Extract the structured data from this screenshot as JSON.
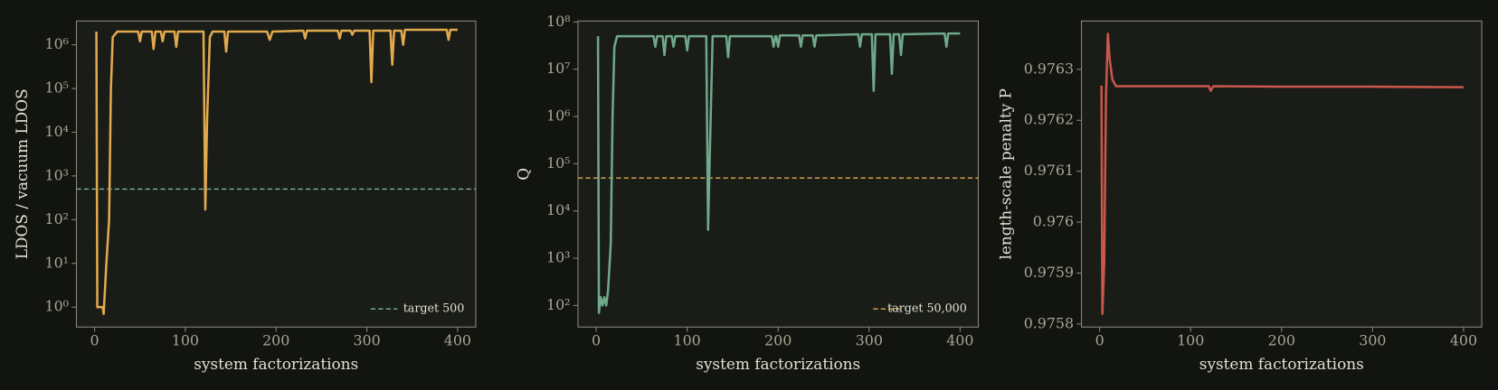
{
  "chart_data": [
    {
      "type": "line",
      "log_y": true,
      "xlabel": "system factorizations",
      "ylabel": "LDOS / vacuum LDOS",
      "xlim": [
        -20,
        420
      ],
      "xticks": [
        0,
        100,
        200,
        300,
        400
      ],
      "ylim": [
        0.35,
        3500000
      ],
      "yticks": [
        {
          "value": 1,
          "label": "10⁰"
        },
        {
          "value": 10,
          "label": "10¹"
        },
        {
          "value": 100,
          "label": "10²"
        },
        {
          "value": 1000,
          "label": "10³"
        },
        {
          "value": 10000,
          "label": "10⁴"
        },
        {
          "value": 100000,
          "label": "10⁵"
        },
        {
          "value": 1000000,
          "label": "10⁶"
        }
      ],
      "legend": "lower right",
      "hlines": [
        {
          "name": "target 500",
          "value": 500,
          "color": "#7fb59a"
        }
      ],
      "series": [
        {
          "color": "#e2aa4f",
          "x": [
            2,
            3,
            6,
            9,
            10,
            13,
            16,
            18,
            20,
            25,
            48,
            50,
            52,
            63,
            65,
            67,
            73,
            75,
            77,
            88,
            90,
            92,
            118,
            120,
            122,
            124,
            127,
            130,
            143,
            145,
            147,
            190,
            193,
            196,
            230,
            232,
            234,
            268,
            270,
            272,
            282,
            284,
            286,
            303,
            305,
            307,
            326,
            328,
            330,
            338,
            340,
            342,
            388,
            390,
            392,
            400
          ],
          "values": [
            2000000,
            1,
            1,
            1,
            0.7,
            10,
            100,
            100000,
            1500000,
            2000000,
            2000000,
            1200000,
            2000000,
            2000000,
            800000,
            2000000,
            2000000,
            1200000,
            2000000,
            2000000,
            900000,
            2000000,
            2000000,
            2000000,
            170,
            20000,
            1500000,
            2000000,
            2000000,
            700000,
            2000000,
            2000000,
            1300000,
            2000000,
            2100000,
            1400000,
            2100000,
            2100000,
            1400000,
            2100000,
            2100000,
            1700000,
            2100000,
            2100000,
            140000,
            2100000,
            2100000,
            350000,
            2100000,
            2100000,
            1000000,
            2200000,
            2200000,
            1300000,
            2200000,
            2200000
          ]
        }
      ]
    },
    {
      "type": "line",
      "log_y": true,
      "xlabel": "system factorizations",
      "ylabel": "Q",
      "xlim": [
        -20,
        420
      ],
      "xticks": [
        0,
        100,
        200,
        300,
        400
      ],
      "ylim": [
        35,
        105000000
      ],
      "yticks": [
        {
          "value": 100,
          "label": "10²"
        },
        {
          "value": 1000,
          "label": "10³"
        },
        {
          "value": 10000,
          "label": "10⁴"
        },
        {
          "value": 100000,
          "label": "10⁵"
        },
        {
          "value": 1000000,
          "label": "10⁶"
        },
        {
          "value": 10000000,
          "label": "10⁷"
        },
        {
          "value": 100000000,
          "label": "10⁸"
        }
      ],
      "legend": "lower right",
      "hlines": [
        {
          "name": "target 50,000",
          "value": 50000,
          "color": "#e2aa4f"
        }
      ],
      "series": [
        {
          "color": "#6fa88a",
          "x": [
            2,
            3,
            5,
            7,
            9,
            11,
            13,
            16,
            18,
            20,
            23,
            63,
            65,
            67,
            73,
            75,
            77,
            83,
            85,
            87,
            98,
            100,
            102,
            121,
            123,
            125,
            128,
            131,
            143,
            145,
            147,
            193,
            195,
            197,
            198,
            200,
            202,
            223,
            225,
            227,
            238,
            240,
            242,
            288,
            290,
            292,
            303,
            305,
            307,
            323,
            325,
            327,
            333,
            335,
            337,
            383,
            385,
            387,
            400
          ],
          "values": [
            50000000,
            70,
            150,
            100,
            150,
            100,
            200,
            2000,
            1000000,
            30000000,
            50000000,
            50000000,
            30000000,
            50000000,
            50000000,
            20000000,
            50000000,
            50000000,
            30000000,
            50000000,
            50000000,
            25000000,
            50000000,
            50000000,
            4000,
            200000,
            50000000,
            50000000,
            50000000,
            18000000,
            50000000,
            50000000,
            30000000,
            50000000,
            50000000,
            30000000,
            52000000,
            52000000,
            30000000,
            52000000,
            52000000,
            30000000,
            52000000,
            55000000,
            30000000,
            55000000,
            55000000,
            3500000,
            55000000,
            55000000,
            8000000,
            55000000,
            55000000,
            20000000,
            55000000,
            57000000,
            30000000,
            57000000,
            57000000
          ]
        }
      ]
    },
    {
      "type": "line",
      "log_y": false,
      "xlabel": "system factorizations",
      "ylabel": "length-scale penalty P",
      "xlim": [
        -20,
        420
      ],
      "xticks": [
        0,
        100,
        200,
        300,
        400
      ],
      "ylim": [
        0.975794,
        0.976395
      ],
      "yticks": [
        0.9758,
        0.9759,
        0.976,
        0.9761,
        0.9762,
        0.9763
      ],
      "series": [
        {
          "color": "#c9584a",
          "x": [
            2,
            3,
            5,
            7,
            9,
            11,
            14,
            18,
            60,
            120,
            122,
            125,
            200,
            300,
            400
          ],
          "values": [
            0.976268,
            0.97582,
            0.97592,
            0.97625,
            0.97637,
            0.97632,
            0.97628,
            0.976267,
            0.976267,
            0.976267,
            0.976258,
            0.976267,
            0.976266,
            0.976266,
            0.976265
          ]
        }
      ]
    }
  ]
}
